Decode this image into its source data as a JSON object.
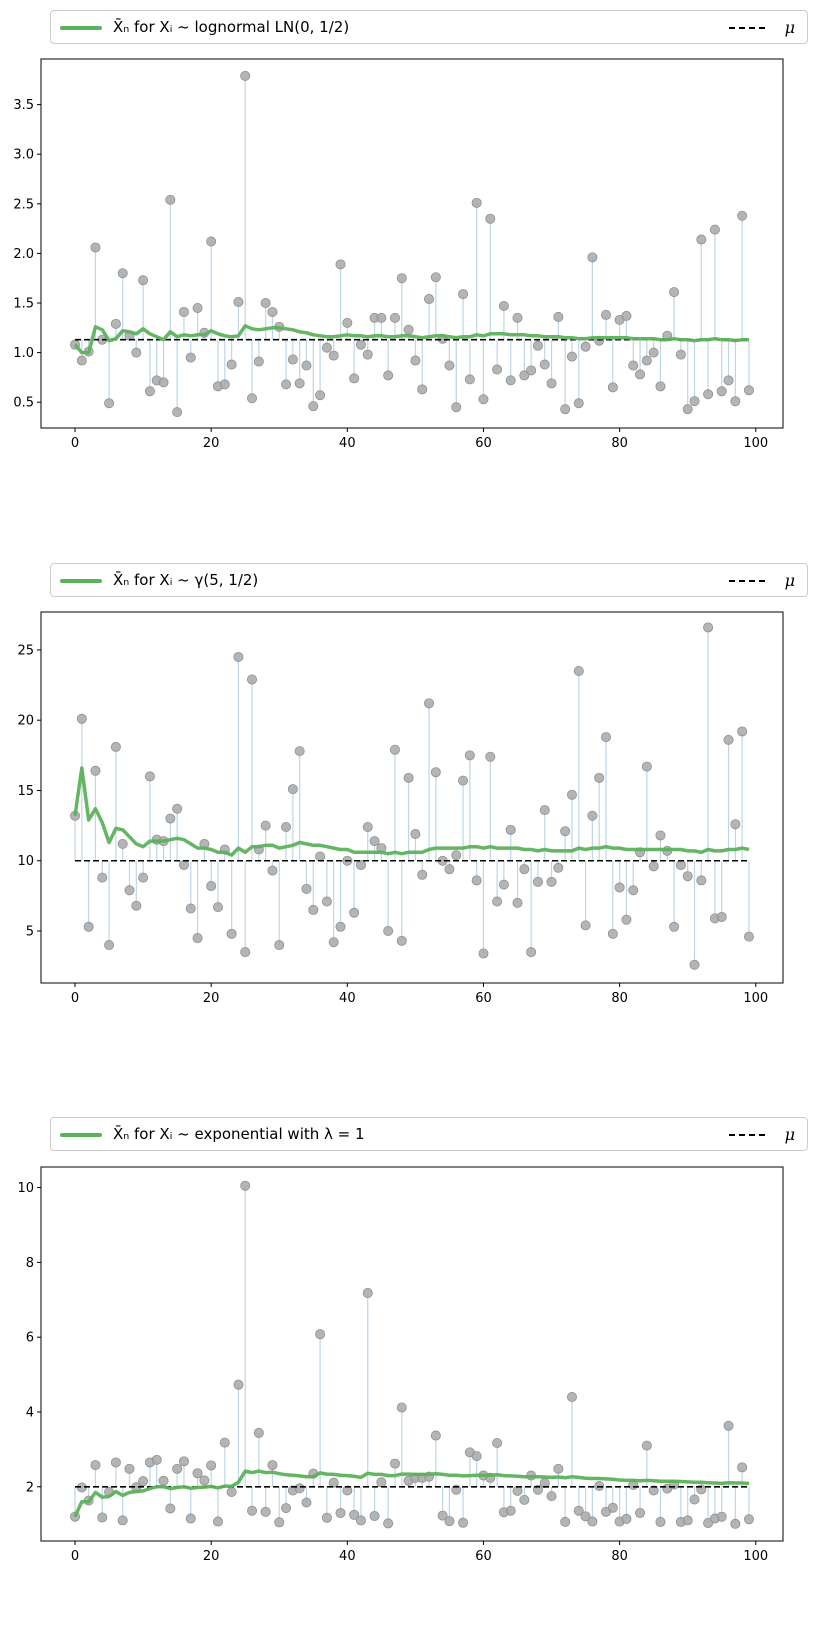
{
  "chart_data": [
    {
      "type": "scatter",
      "legend_label": "X̄ₙ for Xᵢ ~ lognormal LN(0, 1/2)",
      "mu_label": "μ",
      "mu": 1.13,
      "xlim": [
        -5,
        104
      ],
      "ylim": [
        0.24,
        3.96
      ],
      "xticks": [
        0,
        20,
        40,
        60,
        80,
        100
      ],
      "yticks": [
        0.5,
        1.0,
        1.5,
        2.0,
        2.5,
        3.0,
        3.5
      ],
      "ytick_labels": [
        "0.5",
        "1.0",
        "1.5",
        "2.0",
        "2.5",
        "3.0",
        "3.5"
      ],
      "samples": [
        1.08,
        0.92,
        1.01,
        2.06,
        1.13,
        0.49,
        1.29,
        1.8,
        1.17,
        1,
        1.73,
        0.61,
        0.72,
        0.7,
        2.54,
        0.4,
        1.41,
        0.95,
        1.45,
        1.2,
        2.12,
        0.66,
        0.68,
        0.88,
        1.51,
        3.79,
        0.54,
        0.91,
        1.5,
        1.41,
        1.26,
        0.68,
        0.93,
        0.69,
        0.87,
        0.46,
        0.57,
        1.05,
        0.97,
        1.89,
        1.3,
        0.74,
        1.08,
        0.98,
        1.35,
        1.35,
        0.77,
        1.35,
        1.75,
        1.23,
        0.92,
        0.63,
        1.54,
        1.76,
        1.14,
        0.87,
        0.45,
        1.59,
        0.73,
        2.51,
        0.53,
        2.35,
        0.83,
        1.47,
        0.72,
        1.35,
        0.77,
        0.82,
        1.07,
        0.88,
        0.69,
        1.36,
        0.43,
        0.96,
        0.49,
        1.06,
        1.96,
        1.12,
        1.38,
        0.65,
        1.33,
        1.37,
        0.87,
        0.78,
        0.92,
        1,
        0.66,
        1.17,
        1.61,
        0.98,
        0.43,
        0.51,
        2.14,
        0.58,
        2.24,
        0.61,
        0.72,
        0.51,
        2.38,
        0.62
      ],
      "running_mean": [
        1.08,
        1,
        1,
        1.26,
        1.23,
        1.12,
        1.14,
        1.22,
        1.21,
        1.19,
        1.24,
        1.19,
        1.16,
        1.13,
        1.21,
        1.16,
        1.18,
        1.17,
        1.18,
        1.18,
        1.22,
        1.19,
        1.17,
        1.16,
        1.17,
        1.27,
        1.24,
        1.23,
        1.24,
        1.25,
        1.25,
        1.24,
        1.23,
        1.21,
        1.2,
        1.18,
        1.17,
        1.16,
        1.16,
        1.17,
        1.18,
        1.17,
        1.17,
        1.16,
        1.17,
        1.17,
        1.16,
        1.16,
        1.17,
        1.17,
        1.16,
        1.15,
        1.16,
        1.17,
        1.17,
        1.16,
        1.15,
        1.16,
        1.16,
        1.18,
        1.17,
        1.19,
        1.19,
        1.19,
        1.18,
        1.18,
        1.18,
        1.17,
        1.17,
        1.16,
        1.16,
        1.16,
        1.15,
        1.15,
        1.14,
        1.14,
        1.15,
        1.15,
        1.15,
        1.15,
        1.15,
        1.15,
        1.14,
        1.14,
        1.14,
        1.14,
        1.13,
        1.13,
        1.14,
        1.13,
        1.13,
        1.12,
        1.13,
        1.13,
        1.14,
        1.13,
        1.13,
        1.12,
        1.13,
        1.13
      ]
    },
    {
      "type": "scatter",
      "legend_label": "X̄ₙ for Xᵢ ~ γ(5, 1/2)",
      "mu_label": "μ",
      "mu": 10,
      "xlim": [
        -5,
        104
      ],
      "ylim": [
        1.3,
        27.7
      ],
      "xticks": [
        0,
        20,
        40,
        60,
        80,
        100
      ],
      "yticks": [
        5,
        10,
        15,
        20,
        25
      ],
      "ytick_labels": [
        "5",
        "10",
        "15",
        "20",
        "25"
      ],
      "samples": [
        13.2,
        20.1,
        5.3,
        16.4,
        8.8,
        4,
        18.1,
        11.2,
        7.9,
        6.8,
        8.8,
        16,
        11.5,
        11.4,
        13,
        13.7,
        9.7,
        6.6,
        4.5,
        11.2,
        8.2,
        6.7,
        10.8,
        4.8,
        24.5,
        3.5,
        22.9,
        10.8,
        12.5,
        9.3,
        4,
        12.4,
        15.1,
        17.8,
        8,
        6.5,
        10.3,
        7.1,
        4.2,
        5.3,
        10,
        6.3,
        9.7,
        12.4,
        11.4,
        10.9,
        5,
        17.9,
        4.3,
        15.9,
        11.9,
        9,
        21.2,
        16.3,
        10,
        9.4,
        10.4,
        15.7,
        17.5,
        8.6,
        3.4,
        17.4,
        7.1,
        8.3,
        12.2,
        7,
        9.4,
        3.5,
        8.5,
        13.6,
        8.5,
        9.5,
        12.1,
        14.7,
        23.5,
        5.4,
        13.2,
        15.9,
        18.8,
        4.8,
        8.1,
        5.8,
        7.9,
        10.6,
        16.7,
        9.6,
        11.8,
        10.7,
        5.3,
        9.7,
        8.9,
        2.6,
        8.6,
        26.6,
        5.9,
        6,
        18.6,
        12.6,
        19.2,
        4.6
      ],
      "running_mean": [
        13.2,
        16.6,
        12.9,
        13.7,
        12.7,
        11.3,
        12.3,
        12.2,
        11.7,
        11.2,
        11,
        11.4,
        11.4,
        11.4,
        11.5,
        11.6,
        11.5,
        11.2,
        10.9,
        10.9,
        10.8,
        10.6,
        10.6,
        10.4,
        10.9,
        10.6,
        11,
        11,
        11.1,
        11.1,
        10.9,
        11,
        11.1,
        11.3,
        11.2,
        11.1,
        11.1,
        11,
        10.9,
        10.8,
        10.8,
        10.6,
        10.6,
        10.6,
        10.6,
        10.6,
        10.5,
        10.6,
        10.5,
        10.6,
        10.6,
        10.6,
        10.8,
        10.9,
        10.9,
        10.9,
        10.9,
        10.9,
        11,
        11,
        10.9,
        11,
        10.9,
        10.9,
        10.9,
        10.9,
        10.8,
        10.8,
        10.7,
        10.8,
        10.7,
        10.7,
        10.7,
        10.7,
        10.9,
        10.8,
        10.9,
        10.9,
        11,
        10.9,
        10.9,
        10.8,
        10.8,
        10.8,
        10.8,
        10.8,
        10.8,
        10.8,
        10.8,
        10.8,
        10.7,
        10.7,
        10.6,
        10.8,
        10.7,
        10.7,
        10.8,
        10.8,
        10.9,
        10.8
      ]
    },
    {
      "type": "scatter",
      "legend_label": "X̄ₙ for Xᵢ ~ exponential with λ = 1",
      "mu_label": "μ",
      "mu": 2,
      "xlim": [
        -5,
        104
      ],
      "ylim": [
        0.55,
        10.55
      ],
      "xticks": [
        0,
        20,
        40,
        60,
        80,
        100
      ],
      "yticks": [
        2,
        4,
        6,
        8,
        10
      ],
      "ytick_labels": [
        "2",
        "4",
        "6",
        "8",
        "10"
      ],
      "samples": [
        1.2,
        1.98,
        1.63,
        2.58,
        1.18,
        1.86,
        2.65,
        1.1,
        2.48,
        1.99,
        2.15,
        2.65,
        2.72,
        2.16,
        1.42,
        2.48,
        2.68,
        1.15,
        2.36,
        2.17,
        2.57,
        1.07,
        3.18,
        1.86,
        4.73,
        10.05,
        1.36,
        3.44,
        1.33,
        2.58,
        1.05,
        1.43,
        1.9,
        1.96,
        1.58,
        2.35,
        6.08,
        1.17,
        2.11,
        1.3,
        1.9,
        1.25,
        1.1,
        7.18,
        1.22,
        2.12,
        1.02,
        2.62,
        4.12,
        2.16,
        2.24,
        2.24,
        2.27,
        3.37,
        1.23,
        1.08,
        1.92,
        1.04,
        2.92,
        2.82,
        2.3,
        2.24,
        3.17,
        1.32,
        1.36,
        1.89,
        1.65,
        2.3,
        1.92,
        2.1,
        1.75,
        2.48,
        1.06,
        4.4,
        1.36,
        1.21,
        1.07,
        2.02,
        1.33,
        1.44,
        1.07,
        1.14,
        2.05,
        1.3,
        3.1,
        1.9,
        1.06,
        1.95,
        2.06,
        1.06,
        1.1,
        1.66,
        1.93,
        1.03,
        1.15,
        1.2,
        3.63,
        1.01,
        2.52,
        1.13
      ],
      "running_mean": [
        1.2,
        1.6,
        1.6,
        1.85,
        1.72,
        1.74,
        1.87,
        1.77,
        1.85,
        1.87,
        1.89,
        1.95,
        2,
        2,
        1.95,
        1.98,
        2,
        1.96,
        1.98,
        1.99,
        2.01,
        1.97,
        2.02,
        2.01,
        2.12,
        2.42,
        2.38,
        2.42,
        2.38,
        2.39,
        2.35,
        2.32,
        2.31,
        2.29,
        2.27,
        2.27,
        2.37,
        2.34,
        2.33,
        2.31,
        2.3,
        2.28,
        2.25,
        2.36,
        2.33,
        2.33,
        2.3,
        2.3,
        2.34,
        2.34,
        2.33,
        2.33,
        2.33,
        2.35,
        2.33,
        2.31,
        2.31,
        2.29,
        2.3,
        2.31,
        2.31,
        2.31,
        2.32,
        2.3,
        2.29,
        2.28,
        2.27,
        2.27,
        2.27,
        2.26,
        2.25,
        2.26,
        2.24,
        2.27,
        2.25,
        2.23,
        2.22,
        2.22,
        2.21,
        2.2,
        2.18,
        2.17,
        2.17,
        2.16,
        2.17,
        2.16,
        2.15,
        2.15,
        2.15,
        2.14,
        2.13,
        2.12,
        2.12,
        2.11,
        2.1,
        2.09,
        2.11,
        2.1,
        2.1,
        2.09
      ]
    }
  ]
}
